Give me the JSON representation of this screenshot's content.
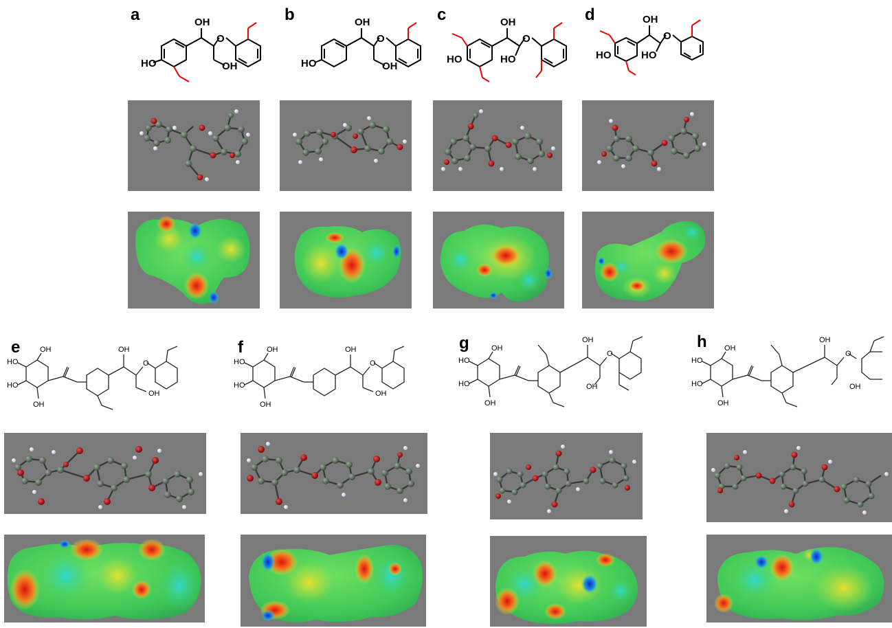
{
  "panels": [
    {
      "label": "a"
    },
    {
      "label": "b"
    },
    {
      "label": "c"
    },
    {
      "label": "d"
    },
    {
      "label": "e"
    },
    {
      "label": "f"
    },
    {
      "label": "g"
    },
    {
      "label": "h"
    }
  ],
  "atom_labels": {
    "oh": "OH",
    "ho": "HO",
    "o": "O"
  },
  "colors": {
    "panel_bg": "#7a7a7a",
    "carbon": "#4f5f4f",
    "oxygen": "#b01010",
    "hydrogen": "#e8e8f0",
    "methoxy_highlight": "#e00000",
    "esp_red": "#e01010",
    "esp_yellow": "#e6e030",
    "esp_green": "#40d060",
    "esp_cyan": "#30d0c8",
    "esp_blue": "#2030d0"
  },
  "icons": [
    "ball-and-stick-model",
    "electrostatic-potential-surface",
    "skeletal-structure"
  ]
}
